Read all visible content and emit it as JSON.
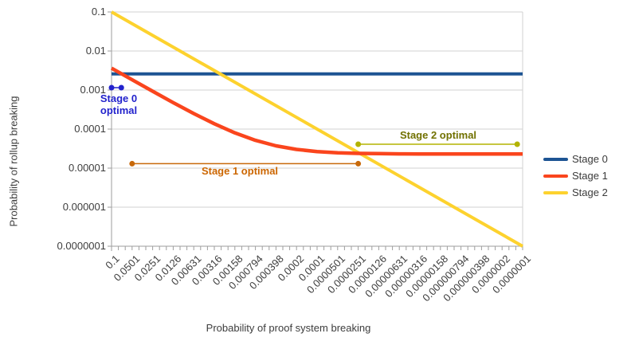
{
  "chart_data": {
    "type": "line",
    "title": "",
    "xlabel": "Probability of proof system breaking",
    "ylabel": "Probability of rollup breaking",
    "x_scale": "log",
    "y_scale": "log",
    "x_range": [
      0.1,
      1e-07
    ],
    "y_range": [
      0.1,
      1e-07
    ],
    "grid": "horizontal-decades",
    "x_ticks": [
      "0.1",
      "0.0501",
      "0.0251",
      "0.0126",
      "0.00631",
      "0.00316",
      "0.00158",
      "0.000794",
      "0.000398",
      "0.0002",
      "0.0001",
      "0.0000501",
      "0.0000251",
      "0.0000126",
      "0.00000631",
      "0.00000316",
      "0.00000158",
      "0.000000794",
      "0.000000398",
      "0.0000002",
      "0.0000001"
    ],
    "y_ticks": [
      "0.1",
      "0.01",
      "0.001",
      "0.0001",
      "0.00001",
      "0.000001",
      "0.0000001"
    ],
    "series": [
      {
        "name": "Stage 0",
        "color": "#1d5493",
        "x": [
          0.1,
          1e-07
        ],
        "y": [
          0.0026,
          0.0026
        ]
      },
      {
        "name": "Stage 1",
        "color": "#fa451d",
        "x": [
          0.1,
          0.0501,
          0.0251,
          0.0126,
          0.00631,
          0.00316,
          0.00158,
          0.000794,
          0.000398,
          0.0002,
          0.0001,
          5.01e-05,
          2.51e-05,
          1.26e-05,
          6.31e-06,
          3.16e-06,
          1.58e-06,
          7.94e-07,
          3.98e-07,
          2e-07,
          1e-07
        ],
        "y": [
          0.00362,
          0.00183,
          0.00093,
          0.000477,
          0.00025,
          0.000137,
          7.99e-05,
          5.16e-05,
          3.73e-05,
          3.02e-05,
          2.66e-05,
          2.48e-05,
          2.39e-05,
          2.35e-05,
          2.32e-05,
          2.31e-05,
          2.31e-05,
          2.3e-05,
          2.3e-05,
          2.3e-05,
          2.3e-05
        ]
      },
      {
        "name": "Stage 2",
        "color": "#fdd22e",
        "x": [
          0.1,
          1e-07
        ],
        "y": [
          0.1,
          1e-07
        ]
      }
    ],
    "annotations": [
      {
        "label": "Stage 0 optimal",
        "color": "#2222cc",
        "text_color": "#2222cc",
        "x1": 0.1,
        "x2": 0.072,
        "y": 0.00115
      },
      {
        "label": "Stage 1 optimal",
        "color": "#c8690a",
        "text_color": "#cc6600",
        "x1": 0.0501,
        "x2": 2.51e-05,
        "y": 1.3e-05
      },
      {
        "label": "Stage 2 optimal",
        "color": "#b3b300",
        "text_color": "#717100",
        "x1": 2.51e-05,
        "x2": 1.2e-07,
        "y": 4.1e-05
      }
    ],
    "legend": {
      "position": "right",
      "entries": [
        {
          "label": "Stage 0",
          "color": "#1d5493"
        },
        {
          "label": "Stage 1",
          "color": "#fa451d"
        },
        {
          "label": "Stage 2",
          "color": "#fdd22e"
        }
      ]
    }
  }
}
